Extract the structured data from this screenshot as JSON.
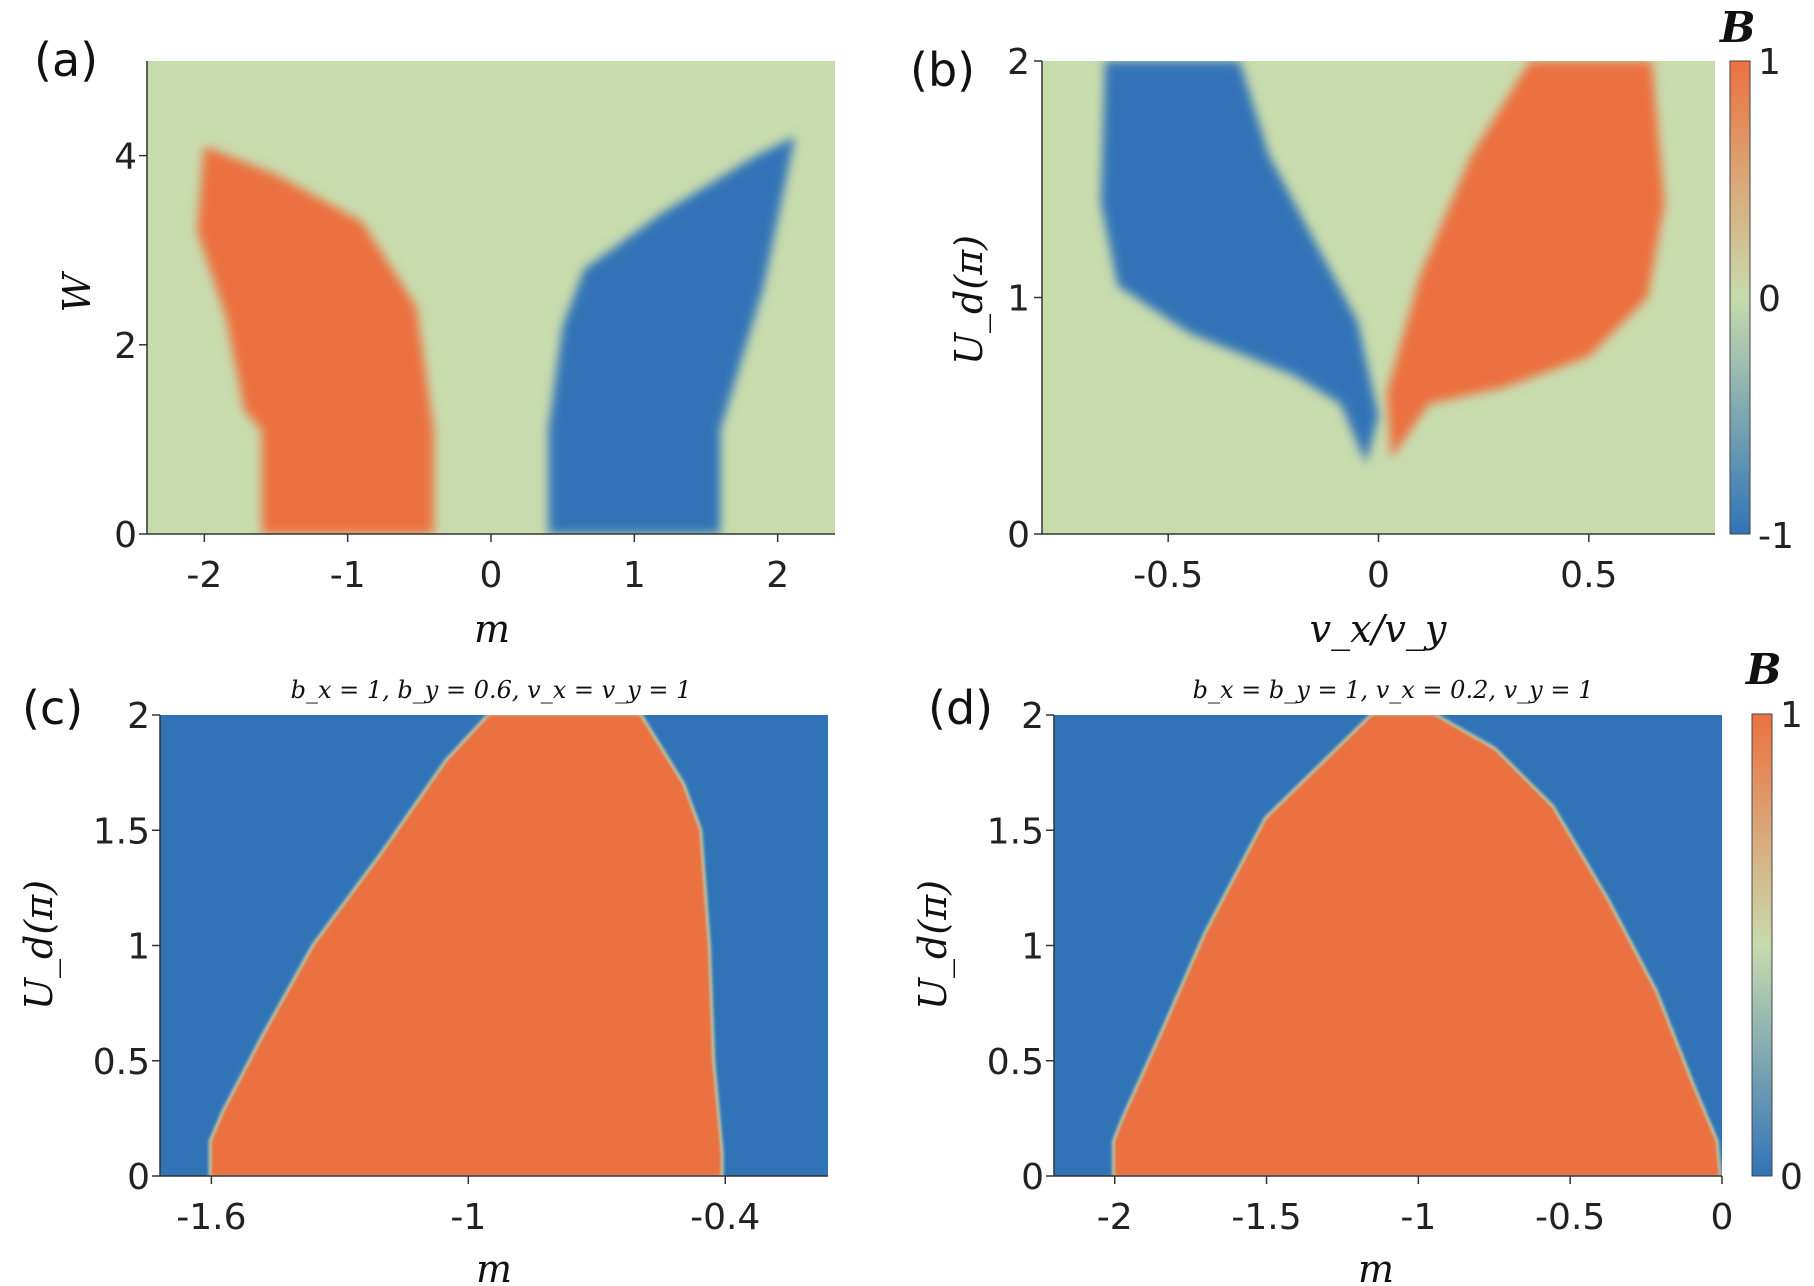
{
  "colors": {
    "blue": "#3173b7",
    "orange": "#ec7141",
    "green": "#c8dbad"
  },
  "colorbar_top": {
    "label": "B",
    "ticks": [
      "1",
      "0",
      "-1"
    ]
  },
  "colorbar_bottom": {
    "label": "B",
    "ticks": [
      "1",
      "0"
    ]
  },
  "chart_data": [
    {
      "panel": "(a)",
      "type": "heatmap",
      "title": "",
      "xlabel": "m",
      "ylabel": "W",
      "xlim": [
        -2.4,
        2.4
      ],
      "ylim": [
        0,
        5
      ],
      "xticks": [
        "-2",
        "-1",
        "0",
        "1",
        "2"
      ],
      "yticks": [
        "0",
        "2",
        "4"
      ],
      "regions": [
        {
          "value": 1,
          "boundary": [
            [
              -1.6,
              0
            ],
            [
              -0.4,
              0
            ],
            [
              -0.4,
              1.1
            ],
            [
              -0.52,
              2.4
            ],
            [
              -0.9,
              3.3
            ],
            [
              -1.5,
              3.8
            ],
            [
              -2.0,
              4.1
            ],
            [
              -2.05,
              3.2
            ],
            [
              -1.85,
              2.3
            ],
            [
              -1.72,
              1.3
            ],
            [
              -1.6,
              1.1
            ]
          ]
        },
        {
          "value": -1,
          "boundary": [
            [
              0.4,
              0
            ],
            [
              1.6,
              0
            ],
            [
              1.6,
              1.1
            ],
            [
              1.7,
              1.6
            ],
            [
              1.9,
              2.6
            ],
            [
              2.12,
              4.2
            ],
            [
              1.85,
              4.0
            ],
            [
              1.2,
              3.4
            ],
            [
              0.65,
              2.8
            ],
            [
              0.5,
              2.2
            ],
            [
              0.4,
              1.1
            ]
          ]
        }
      ]
    },
    {
      "panel": "(b)",
      "type": "heatmap",
      "title": "",
      "xlabel": "v_x/v_y",
      "ylabel": "U_d(π)",
      "xlim": [
        -0.8,
        0.8
      ],
      "ylim": [
        0,
        2
      ],
      "xticks": [
        "-0.5",
        "0",
        "0.5"
      ],
      "yticks": [
        "0",
        "1",
        "2"
      ],
      "regions": [
        {
          "value": -1,
          "boundary": [
            [
              -0.03,
              0.3
            ],
            [
              -0.09,
              0.55
            ],
            [
              -0.2,
              0.67
            ],
            [
              -0.45,
              0.85
            ],
            [
              -0.62,
              1.05
            ],
            [
              -0.66,
              1.4
            ],
            [
              -0.65,
              2.0
            ],
            [
              -0.33,
              2.0
            ],
            [
              -0.26,
              1.6
            ],
            [
              -0.17,
              1.3
            ],
            [
              -0.05,
              0.9
            ],
            [
              0.0,
              0.5
            ]
          ]
        },
        {
          "value": 1,
          "boundary": [
            [
              0.03,
              0.32
            ],
            [
              0.12,
              0.55
            ],
            [
              0.3,
              0.62
            ],
            [
              0.5,
              0.75
            ],
            [
              0.64,
              1.0
            ],
            [
              0.68,
              1.4
            ],
            [
              0.65,
              2.0
            ],
            [
              0.36,
              2.0
            ],
            [
              0.22,
              1.6
            ],
            [
              0.1,
              1.1
            ],
            [
              0.02,
              0.6
            ]
          ]
        }
      ]
    },
    {
      "panel": "(c)",
      "type": "heatmap",
      "title": "b_x = 1, b_y = 0.6, v_x = v_y = 1",
      "xlabel": "m",
      "ylabel": "U_d(π)",
      "xlim": [
        -1.72,
        -0.16
      ],
      "ylim": [
        0,
        2
      ],
      "xticks": [
        "-1.6",
        "-1",
        "-0.4"
      ],
      "yticks": [
        "0",
        "0.5",
        "1",
        "1.5",
        "2"
      ],
      "background_value": 0,
      "regions": [
        {
          "value": 1,
          "boundary": [
            [
              -1.6,
              0
            ],
            [
              -0.41,
              0
            ],
            [
              -0.41,
              0.1
            ],
            [
              -0.43,
              0.5
            ],
            [
              -0.44,
              1.0
            ],
            [
              -0.46,
              1.5
            ],
            [
              -0.5,
              1.7
            ],
            [
              -0.6,
              2.0
            ],
            [
              -0.95,
              2.0
            ],
            [
              -1.05,
              1.8
            ],
            [
              -1.2,
              1.4
            ],
            [
              -1.36,
              1.0
            ],
            [
              -1.48,
              0.6
            ],
            [
              -1.57,
              0.28
            ],
            [
              -1.6,
              0.15
            ]
          ]
        }
      ]
    },
    {
      "panel": "(d)",
      "type": "heatmap",
      "title": "b_x = b_y = 1, v_x = 0.2, v_y = 1",
      "xlabel": "m",
      "ylabel": "U_d(π)",
      "xlim": [
        -2.2,
        0.0
      ],
      "ylim": [
        0,
        2
      ],
      "xticks": [
        "-2",
        "-1.5",
        "-1",
        "-0.5",
        "0"
      ],
      "yticks": [
        "0",
        "0.5",
        "1",
        "1.5",
        "2"
      ],
      "background_value": 0,
      "regions": [
        {
          "value": 1,
          "boundary": [
            [
              -2.0,
              0
            ],
            [
              -0.01,
              0
            ],
            [
              -0.02,
              0.15
            ],
            [
              -0.1,
              0.4
            ],
            [
              -0.22,
              0.8
            ],
            [
              -0.38,
              1.2
            ],
            [
              -0.56,
              1.6
            ],
            [
              -0.75,
              1.85
            ],
            [
              -0.95,
              2.0
            ],
            [
              -1.15,
              2.0
            ],
            [
              -1.5,
              1.55
            ],
            [
              -1.7,
              1.05
            ],
            [
              -1.85,
              0.6
            ],
            [
              -1.97,
              0.25
            ],
            [
              -2.0,
              0.15
            ]
          ]
        }
      ]
    }
  ]
}
